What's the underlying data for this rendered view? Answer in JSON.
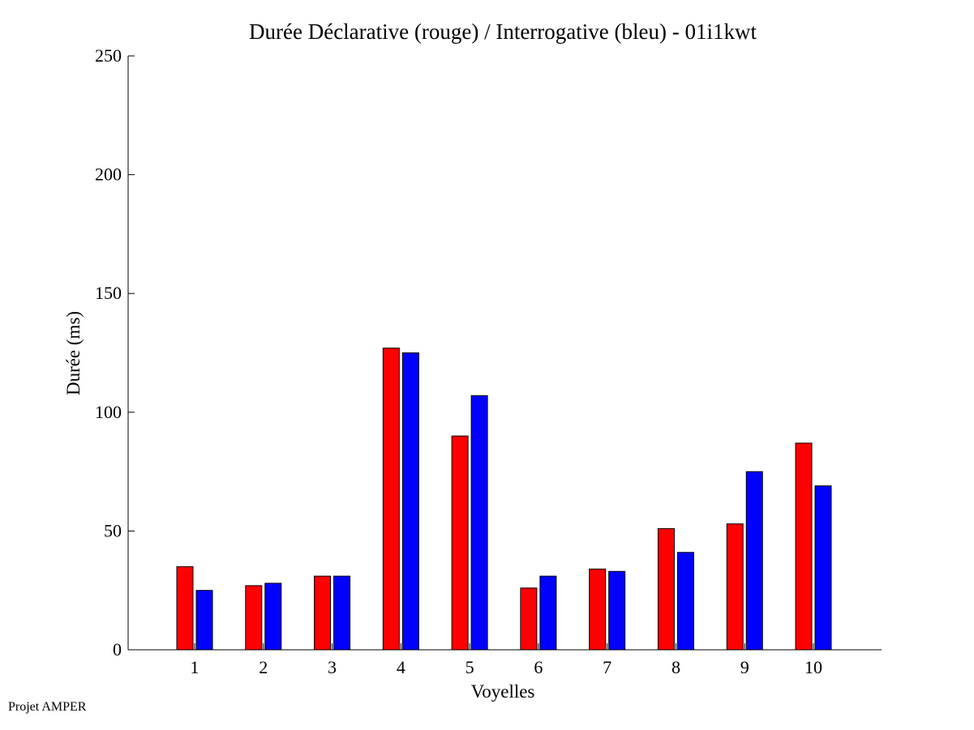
{
  "footer": "Projet AMPER",
  "chart_data": {
    "type": "bar",
    "title": "Durée Déclarative (rouge) / Interrogative (bleu) - 01i1kwt",
    "xlabel": "Voyelles",
    "ylabel": "Durée (ms)",
    "ylim": [
      0,
      250
    ],
    "yticks": [
      0,
      50,
      100,
      150,
      200,
      250
    ],
    "categories": [
      "1",
      "2",
      "3",
      "4",
      "5",
      "6",
      "7",
      "8",
      "9",
      "10"
    ],
    "series": [
      {
        "color": "#ff0000",
        "values": [
          35,
          27,
          31,
          127,
          90,
          26,
          34,
          51,
          53,
          87
        ]
      },
      {
        "color": "#0000ff",
        "values": [
          25,
          28,
          31,
          125,
          107,
          31,
          33,
          41,
          75,
          69
        ]
      }
    ],
    "grid": false,
    "legend": "none"
  }
}
